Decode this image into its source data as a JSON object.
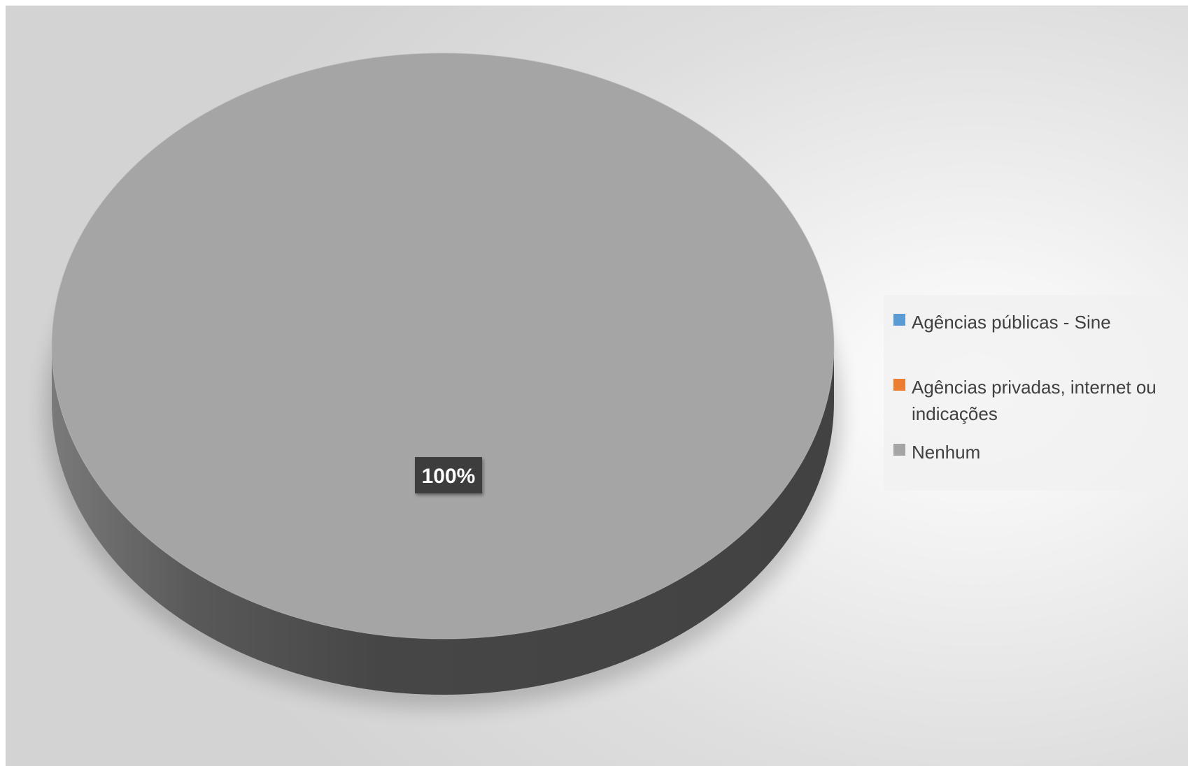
{
  "chart_data": {
    "type": "pie",
    "title": "",
    "categories": [
      "Agências públicas - Sine",
      "Agências privadas, internet ou indicações",
      "Nenhum"
    ],
    "values": [
      0,
      0,
      100
    ],
    "data_labels": [
      "",
      "",
      "100%"
    ],
    "colors": [
      "#5b9bd5",
      "#ed7d31",
      "#a5a5a5"
    ],
    "legend_position": "right",
    "style": "3d"
  }
}
